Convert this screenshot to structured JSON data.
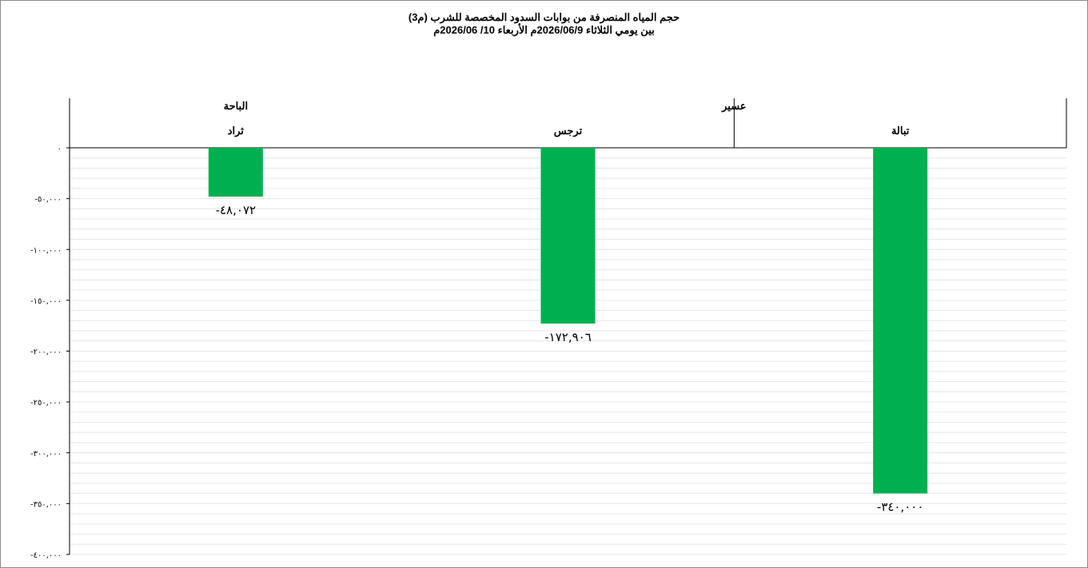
{
  "chart_data": {
    "type": "bar",
    "title": "حجم المياه المنصرفة من بوابات السدود المخصصة للشرب (م3)",
    "subtitle": "بين يومي الثلاثاء 2026/06/9م الأربعاء 10/ 2026/06م",
    "groups": [
      {
        "name": "عسير",
        "categories": [
          "تبالة",
          "ترجس"
        ]
      },
      {
        "name": "الباحة",
        "categories": [
          "ثراد"
        ]
      }
    ],
    "categories": [
      "تبالة",
      "ترجس",
      "ثراد"
    ],
    "values": [
      -340000,
      -172906,
      -48072
    ],
    "data_labels": [
      "-٣٤٠,٠٠٠",
      "-١٧٢,٩٠٦",
      "-٤٨,٠٧٢"
    ],
    "y_ticks": [
      0,
      -50000,
      -100000,
      -150000,
      -200000,
      -250000,
      -300000,
      -350000,
      -400000
    ],
    "y_tick_labels": [
      "٠",
      "-٥٠,٠٠٠",
      "-١٠٠,٠٠٠",
      "-١٥٠,٠٠٠",
      "-٢٠٠,٠٠٠",
      "-٢٥٠,٠٠٠",
      "-٣٠٠,٠٠٠",
      "-٣٥٠,٠٠٠",
      "-٤٠٠,٠٠٠"
    ],
    "ylim": [
      -400000,
      0
    ],
    "bar_color": "#00b050",
    "grid": true,
    "legend": "none"
  }
}
